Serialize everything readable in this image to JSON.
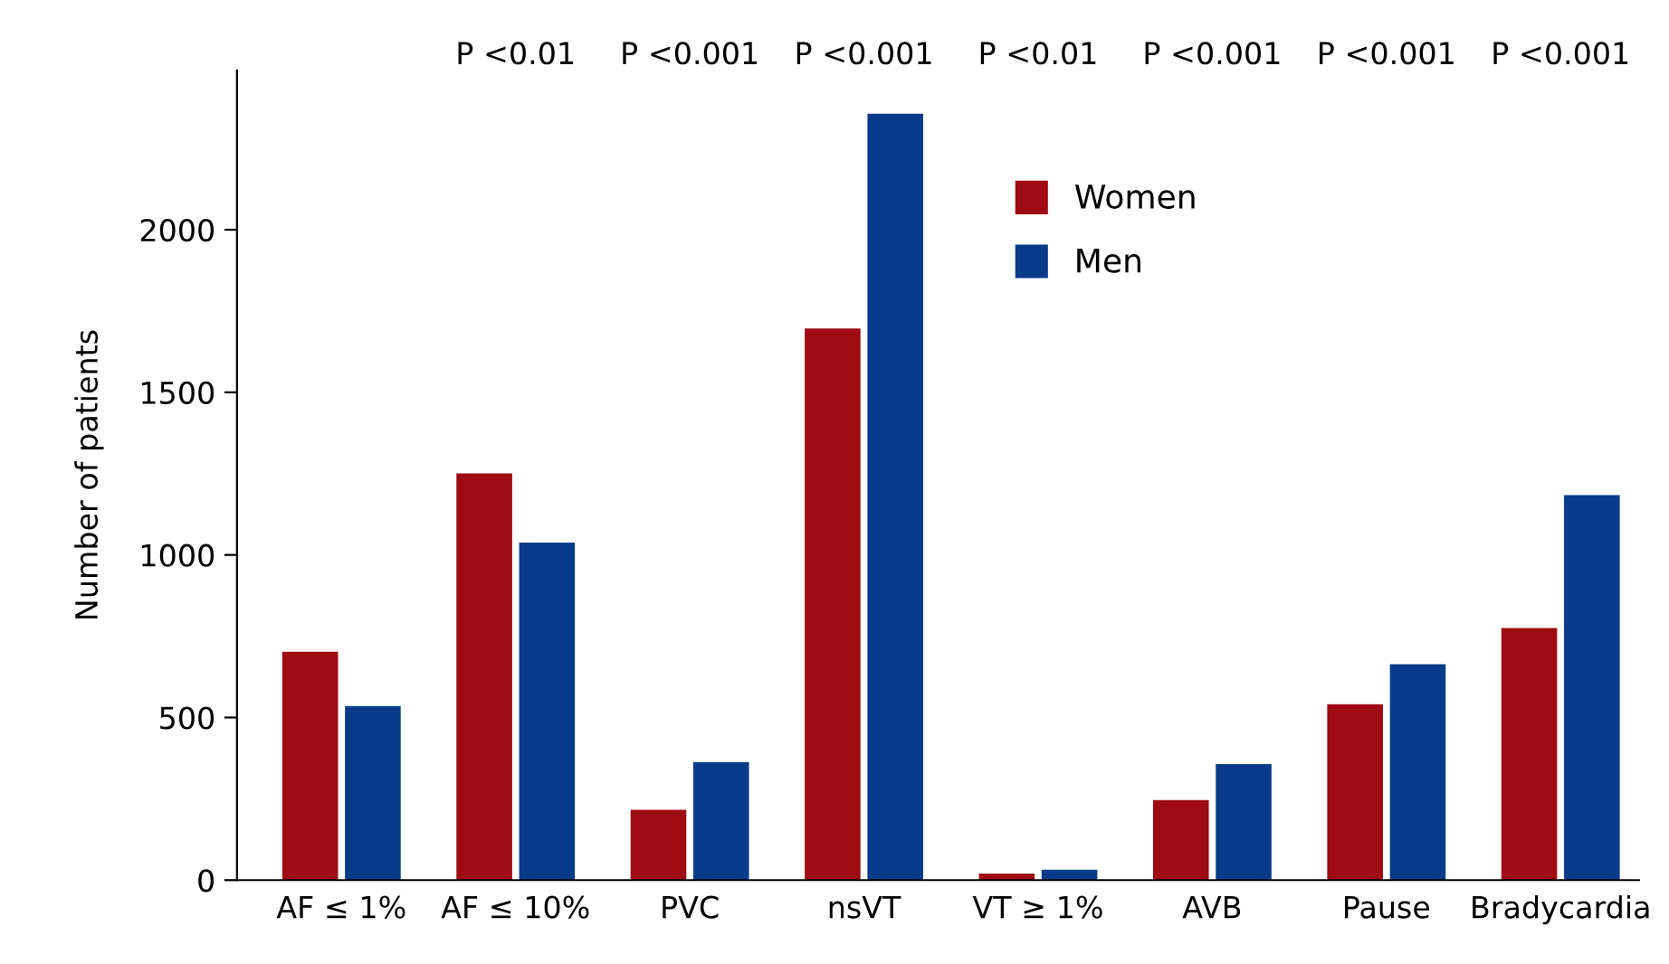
{
  "chart_data": {
    "type": "bar",
    "ylabel": "Number of patients",
    "categories": [
      "AF ≤ 1%",
      "AF ≤ 10%",
      "PVC",
      "nsVT",
      "VT ≥ 1%",
      "AVB",
      "Pause",
      "Bradycardia"
    ],
    "series": [
      {
        "name": "Women",
        "color": "#9e0b12",
        "values": [
          702,
          1251,
          216,
          1696,
          20,
          246,
          541,
          775
        ]
      },
      {
        "name": "Men",
        "color": "#083c8a",
        "values": [
          535,
          1038,
          363,
          2357,
          32,
          357,
          664,
          1184
        ]
      }
    ],
    "ylim": [
      0,
      2490
    ],
    "yticks": [
      0,
      500,
      1000,
      1500,
      2000
    ],
    "grid": false,
    "legend": "top",
    "annotations": [
      "P <0.01",
      "P <0.001",
      "P <0.001",
      "P <0.01",
      "P <0.001",
      "P <0.001",
      "P <0.001"
    ]
  }
}
